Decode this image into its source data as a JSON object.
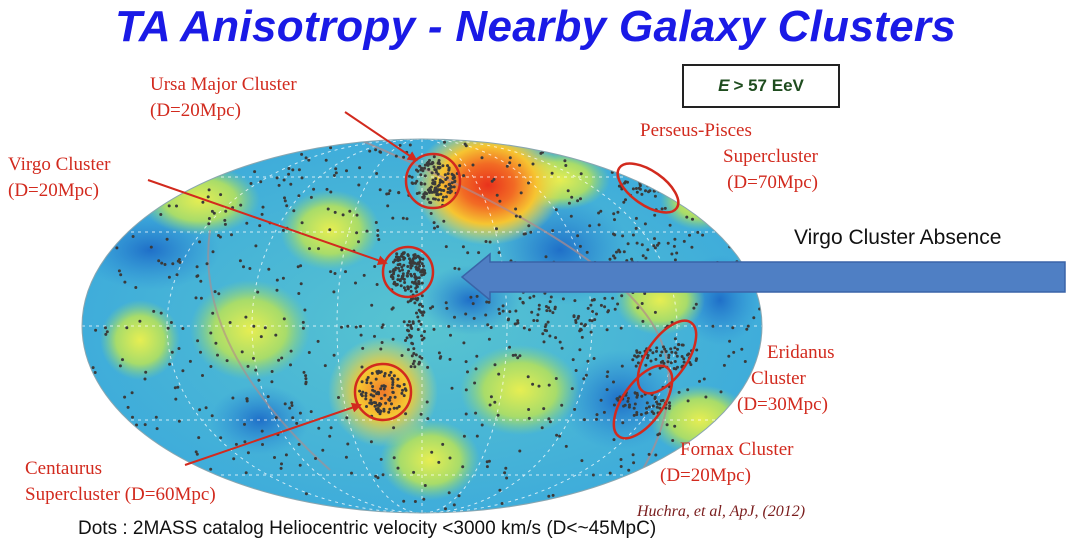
{
  "title": "TA Anisotropy - Nearby Galaxy Clusters",
  "energy_cut": {
    "variable": "E",
    "text": "> 57 EeV"
  },
  "labels": {
    "ursa_major": {
      "name": "Ursa Major Cluster",
      "distance": "(D=20Mpc)"
    },
    "virgo": {
      "name": "Virgo Cluster",
      "distance": "(D=20Mpc)"
    },
    "perseus_pisces": {
      "name": "Perseus-Pisces",
      "name2": "Supercluster",
      "distance": "(D=70Mpc)"
    },
    "eridanus": {
      "name": "Eridanus",
      "name2": "Cluster",
      "distance": "(D=30Mpc)"
    },
    "fornax": {
      "name": "Fornax Cluster",
      "distance": "(D=20Mpc)"
    },
    "centaurus": {
      "name": "Centaurus",
      "name2": "Supercluster (D=60Mpc)"
    }
  },
  "virgo_absence": "Virgo Cluster Absence",
  "reference": "Huchra, et al, ApJ, (2012)",
  "caption": "Dots : 2MASS catalog Heliocentric velocity <3000 km/s (D<~45MpC)",
  "colors": {
    "title": "#1a1ae6",
    "annotation": "#d22a1e",
    "arrow_fill": "#4f7fc4",
    "map_base": "#3fb5d8",
    "hotspot": "#e8321c"
  }
}
